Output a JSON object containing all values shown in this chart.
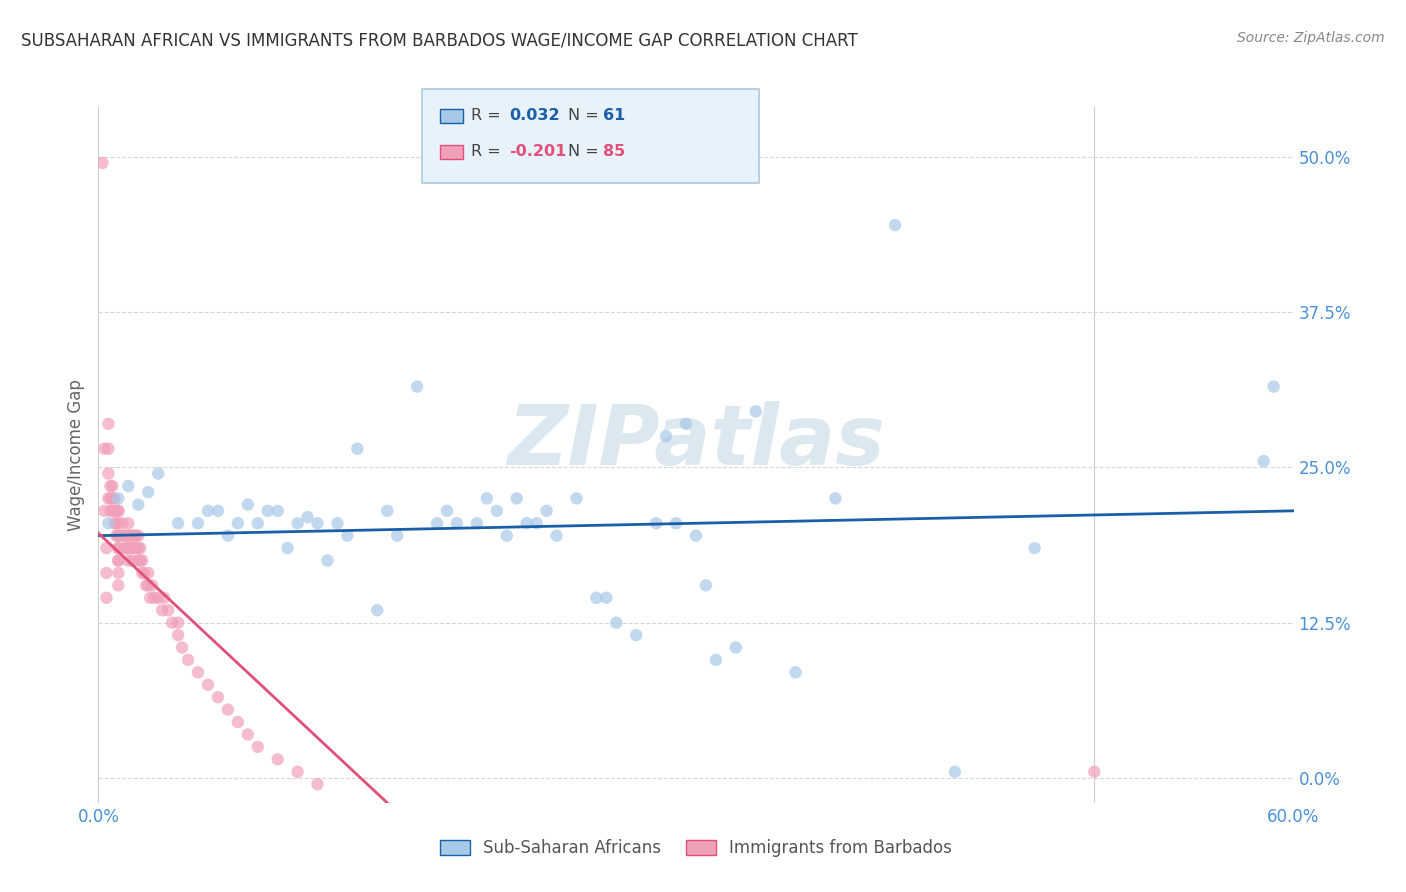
{
  "title": "SUBSAHARAN AFRICAN VS IMMIGRANTS FROM BARBADOS WAGE/INCOME GAP CORRELATION CHART",
  "source": "Source: ZipAtlas.com",
  "ylabel": "Wage/Income Gap",
  "watermark": "ZIPatlas",
  "legend_label1": "Sub-Saharan Africans",
  "legend_label2": "Immigrants from Barbados",
  "xlim": [
    0.0,
    0.6
  ],
  "ylim": [
    -0.02,
    0.54
  ],
  "yticks": [
    0.0,
    0.125,
    0.25,
    0.375,
    0.5
  ],
  "ytick_labels": [
    "0.0%",
    "12.5%",
    "25.0%",
    "37.5%",
    "50.0%"
  ],
  "xticks": [
    0.0,
    0.1,
    0.2,
    0.3,
    0.4,
    0.5,
    0.6
  ],
  "xtick_labels": [
    "0.0%",
    "",
    "",
    "",
    "",
    "",
    "60.0%"
  ],
  "color_blue": "#a8c8e8",
  "color_pink": "#f0a0b8",
  "line_blue": "#1a5fa8",
  "line_pink": "#e0507a",
  "scatter_alpha": 0.7,
  "marker_size": 80,
  "blue_line_x": [
    0.0,
    0.6
  ],
  "blue_line_y": [
    0.195,
    0.215
  ],
  "pink_line_x": [
    0.0,
    0.145
  ],
  "pink_line_y": [
    0.197,
    -0.02
  ],
  "blue_x": [
    0.005,
    0.01,
    0.015,
    0.02,
    0.025,
    0.03,
    0.04,
    0.05,
    0.055,
    0.06,
    0.065,
    0.07,
    0.075,
    0.08,
    0.085,
    0.09,
    0.095,
    0.1,
    0.105,
    0.11,
    0.115,
    0.12,
    0.125,
    0.13,
    0.14,
    0.145,
    0.15,
    0.16,
    0.17,
    0.175,
    0.18,
    0.19,
    0.195,
    0.2,
    0.205,
    0.21,
    0.215,
    0.22,
    0.225,
    0.23,
    0.24,
    0.25,
    0.255,
    0.26,
    0.27,
    0.28,
    0.285,
    0.29,
    0.295,
    0.3,
    0.305,
    0.31,
    0.32,
    0.33,
    0.35,
    0.37,
    0.4,
    0.43,
    0.47,
    0.585,
    0.59
  ],
  "blue_y": [
    0.205,
    0.225,
    0.235,
    0.22,
    0.23,
    0.245,
    0.205,
    0.205,
    0.215,
    0.215,
    0.195,
    0.205,
    0.22,
    0.205,
    0.215,
    0.215,
    0.185,
    0.205,
    0.21,
    0.205,
    0.175,
    0.205,
    0.195,
    0.265,
    0.135,
    0.215,
    0.195,
    0.315,
    0.205,
    0.215,
    0.205,
    0.205,
    0.225,
    0.215,
    0.195,
    0.225,
    0.205,
    0.205,
    0.215,
    0.195,
    0.225,
    0.145,
    0.145,
    0.125,
    0.115,
    0.205,
    0.275,
    0.205,
    0.285,
    0.195,
    0.155,
    0.095,
    0.105,
    0.295,
    0.085,
    0.225,
    0.445,
    0.005,
    0.185,
    0.255,
    0.315
  ],
  "pink_x": [
    0.002,
    0.003,
    0.003,
    0.004,
    0.004,
    0.004,
    0.005,
    0.005,
    0.005,
    0.005,
    0.006,
    0.006,
    0.006,
    0.007,
    0.007,
    0.007,
    0.008,
    0.008,
    0.008,
    0.009,
    0.009,
    0.009,
    0.01,
    0.01,
    0.01,
    0.01,
    0.01,
    0.01,
    0.01,
    0.01,
    0.01,
    0.01,
    0.01,
    0.012,
    0.012,
    0.013,
    0.013,
    0.014,
    0.014,
    0.015,
    0.015,
    0.015,
    0.015,
    0.016,
    0.016,
    0.017,
    0.017,
    0.018,
    0.018,
    0.019,
    0.019,
    0.02,
    0.02,
    0.02,
    0.021,
    0.021,
    0.022,
    0.022,
    0.023,
    0.024,
    0.025,
    0.025,
    0.026,
    0.027,
    0.028,
    0.03,
    0.032,
    0.033,
    0.035,
    0.037,
    0.04,
    0.04,
    0.042,
    0.045,
    0.05,
    0.055,
    0.06,
    0.065,
    0.07,
    0.075,
    0.08,
    0.09,
    0.1,
    0.11,
    0.5
  ],
  "pink_y": [
    0.495,
    0.265,
    0.215,
    0.185,
    0.165,
    0.145,
    0.285,
    0.265,
    0.245,
    0.225,
    0.235,
    0.225,
    0.215,
    0.235,
    0.225,
    0.215,
    0.225,
    0.215,
    0.205,
    0.215,
    0.205,
    0.195,
    0.215,
    0.215,
    0.205,
    0.195,
    0.185,
    0.175,
    0.165,
    0.155,
    0.195,
    0.185,
    0.175,
    0.205,
    0.195,
    0.195,
    0.185,
    0.195,
    0.185,
    0.205,
    0.195,
    0.185,
    0.175,
    0.195,
    0.185,
    0.195,
    0.175,
    0.195,
    0.185,
    0.195,
    0.185,
    0.195,
    0.185,
    0.175,
    0.185,
    0.175,
    0.175,
    0.165,
    0.165,
    0.155,
    0.165,
    0.155,
    0.145,
    0.155,
    0.145,
    0.145,
    0.135,
    0.145,
    0.135,
    0.125,
    0.125,
    0.115,
    0.105,
    0.095,
    0.085,
    0.075,
    0.065,
    0.055,
    0.045,
    0.035,
    0.025,
    0.015,
    0.005,
    -0.005,
    0.005
  ],
  "bg_color": "#ffffff",
  "grid_color": "#cccccc",
  "tick_color": "#4a90d8",
  "title_color": "#333333",
  "watermark_color": "#dce8f0",
  "legend_box_color": "#e8f2fa",
  "legend_border_color": "#b0c8e0",
  "legend_blue_text": "#1a5fa8",
  "legend_pink_text": "#e0507a"
}
